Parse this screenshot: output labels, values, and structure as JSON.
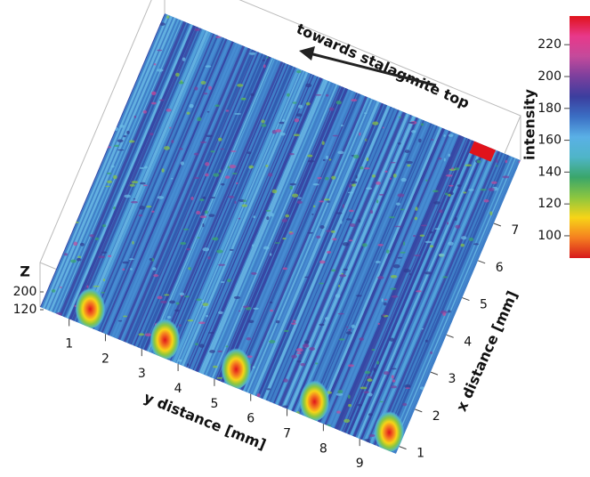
{
  "chart_data": {
    "type": "surface",
    "annotation": "towards stalagmite top",
    "xlabel": "x distance [mm]",
    "ylabel": "y distance [mm]",
    "zlabel": "Z",
    "colorbar_label": "intensity",
    "xlim": [
      0.8,
      8.7
    ],
    "xticks": [
      1,
      2,
      3,
      4,
      5,
      6,
      7
    ],
    "ylim": [
      0.2,
      10
    ],
    "yticks": [
      1,
      2,
      3,
      4,
      5,
      6,
      7,
      8,
      9
    ],
    "zlim": [
      100,
      220
    ],
    "zticks": [
      120,
      200
    ],
    "clim": [
      86,
      238
    ],
    "cticks": [
      100,
      120,
      140,
      160,
      180,
      200,
      220
    ],
    "colormap": [
      "#d7191c",
      "#f57f20",
      "#f7d417",
      "#8cc63f",
      "#3aa66a",
      "#4fb5c8",
      "#5ab0e6",
      "#3b6fc4",
      "#3b3e9e",
      "#7b3f9d",
      "#c44a9b",
      "#e8388a",
      "#e0131b"
    ]
  }
}
